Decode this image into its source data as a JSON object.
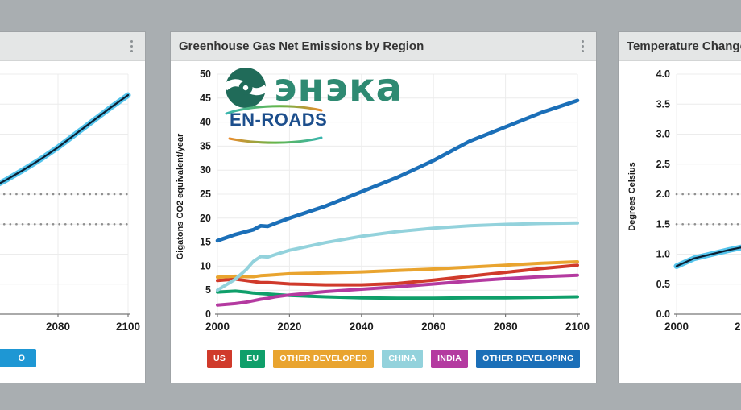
{
  "colors": {
    "stage_bg": "#a9aeb1",
    "panel_bg": "#ffffff",
    "header_bg": "#e4e6e6",
    "grid": "#ececec",
    "axis": "#777777",
    "threshold_dotted": "#8f8f8f",
    "temp_band_outer": "#54c4ec",
    "temp_band_core": "#0c2033",
    "eneka_green": "#2e8a72",
    "enroads_navy": "#1c4e8c"
  },
  "panels": {
    "left": {
      "title": "",
      "legend_partial": {
        "label": "O",
        "color": "#1e97d4"
      }
    },
    "center": {
      "title": "Greenhouse Gas Net Emissions by Region"
    },
    "right": {
      "title": "Temperature Change"
    }
  },
  "watermark": {
    "eneka_text": "энэка",
    "enroads_text": "EN-ROADS"
  },
  "chart_data": [
    {
      "id": "emissions",
      "type": "line",
      "title": "Greenhouse Gas Net Emissions by Region",
      "xlabel": "",
      "ylabel": "Gigatons CO2 equivalent/year",
      "ylim": [
        0,
        50
      ],
      "ytick_step": 5,
      "xlim": [
        2000,
        2100
      ],
      "xtick_step": 20,
      "grid": true,
      "legend_position": "bottom",
      "x": [
        2000,
        2005,
        2008,
        2010,
        2012,
        2014,
        2016,
        2020,
        2030,
        2040,
        2050,
        2060,
        2070,
        2080,
        2090,
        2100
      ],
      "series": [
        {
          "name": "US",
          "color": "#d03a2b",
          "values": [
            7.0,
            7.3,
            7.0,
            6.8,
            6.6,
            6.6,
            6.5,
            6.3,
            6.1,
            6.1,
            6.4,
            7.1,
            7.9,
            8.7,
            9.5,
            10.2
          ]
        },
        {
          "name": "EU",
          "color": "#0f9f6a",
          "values": [
            4.6,
            4.8,
            4.6,
            4.4,
            4.3,
            4.2,
            4.1,
            3.9,
            3.6,
            3.4,
            3.3,
            3.3,
            3.4,
            3.4,
            3.5,
            3.6
          ]
        },
        {
          "name": "OTHER DEVELOPED",
          "color": "#e9a42f",
          "values": [
            7.7,
            7.9,
            7.8,
            7.8,
            8.0,
            8.1,
            8.2,
            8.4,
            8.6,
            8.8,
            9.1,
            9.4,
            9.8,
            10.2,
            10.6,
            10.9
          ]
        },
        {
          "name": "CHINA",
          "color": "#93d2dc",
          "values": [
            5.0,
            7.3,
            9.3,
            11.0,
            12.0,
            11.9,
            12.4,
            13.3,
            14.9,
            16.2,
            17.2,
            17.9,
            18.4,
            18.7,
            18.9,
            19.0
          ]
        },
        {
          "name": "INDIA",
          "color": "#b43aa0",
          "values": [
            1.9,
            2.2,
            2.5,
            2.8,
            3.1,
            3.3,
            3.6,
            4.0,
            4.7,
            5.2,
            5.7,
            6.3,
            6.9,
            7.4,
            7.8,
            8.1
          ]
        },
        {
          "name": "OTHER DEVELOPING",
          "color": "#1b6fb8",
          "values": [
            15.3,
            16.6,
            17.2,
            17.6,
            18.4,
            18.3,
            18.9,
            20.0,
            22.5,
            25.5,
            28.5,
            32.0,
            36.0,
            39.0,
            42.0,
            44.5
          ]
        }
      ],
      "draw_order": [
        1,
        4,
        0,
        2,
        3,
        5
      ]
    },
    {
      "id": "temperature",
      "type": "line",
      "title": "Temperature Change",
      "xlabel": "",
      "ylabel": "Degrees Celsius",
      "ylim": [
        0,
        4.0
      ],
      "ytick_step": 0.5,
      "xlim": [
        2000,
        2100
      ],
      "xtick_step": 20,
      "grid": true,
      "thresholds": [
        1.5,
        2.0
      ],
      "x": [
        2000,
        2005,
        2010,
        2015,
        2020,
        2025,
        2030,
        2035,
        2040,
        2045,
        2050,
        2055,
        2060,
        2065,
        2070,
        2075,
        2080,
        2085,
        2090,
        2095,
        2100
      ],
      "series": [
        {
          "name": "Temperature",
          "color_outer": "#54c4ec",
          "color_core": "#0c2033",
          "values": [
            0.8,
            0.93,
            1.0,
            1.07,
            1.13,
            1.2,
            1.3,
            1.41,
            1.53,
            1.66,
            1.8,
            1.94,
            2.08,
            2.23,
            2.4,
            2.58,
            2.78,
            3.0,
            3.22,
            3.44,
            3.65
          ]
        }
      ]
    }
  ]
}
